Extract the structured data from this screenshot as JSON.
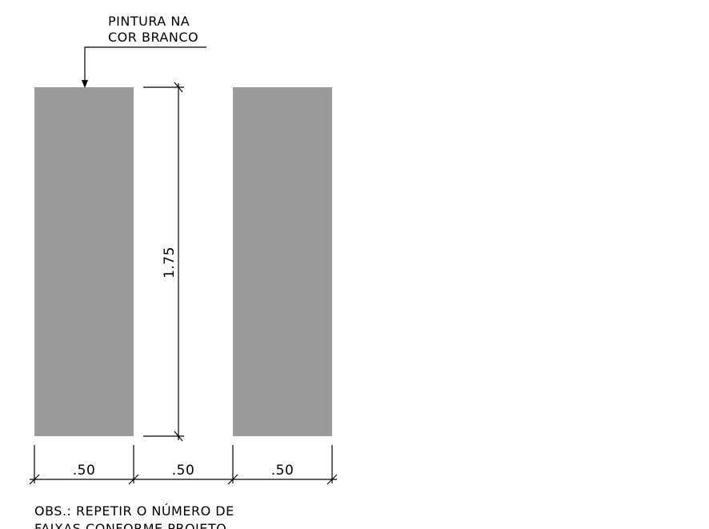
{
  "callout": {
    "line1": "PINTURA NA",
    "line2": "COR BRANCO"
  },
  "dimensions": {
    "height_label": "1.75",
    "width_labels": [
      ".50",
      ".50",
      ".50"
    ]
  },
  "note": {
    "line1": "OBS.: REPETIR O NÚMERO DE",
    "line2": "FAIXAS CONFORME PROJETO"
  },
  "colors": {
    "stripe_fill": "#9a9a9a",
    "line": "#000000",
    "background": "#ffffff"
  }
}
